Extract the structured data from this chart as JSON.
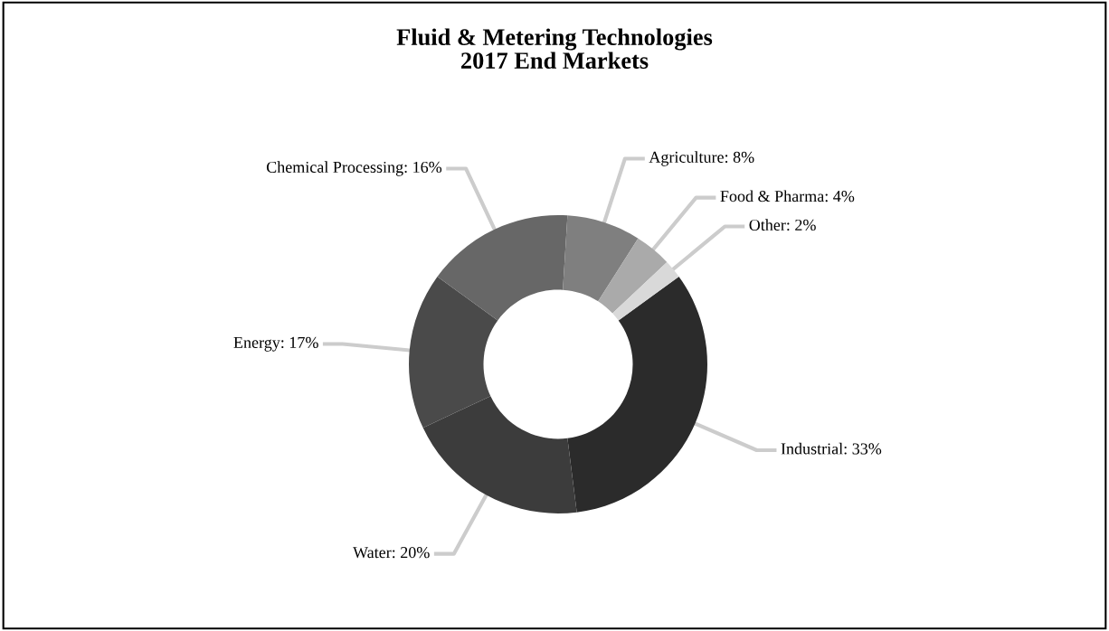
{
  "chart_data": {
    "type": "donut",
    "title": "Fluid & Metering Technologies\n2017 End Markets",
    "categories": [
      "Industrial",
      "Water",
      "Energy",
      "Chemical Processing",
      "Agriculture",
      "Food & Pharma",
      "Other"
    ],
    "values": [
      33,
      20,
      17,
      16,
      8,
      4,
      2
    ],
    "colors": [
      "#2b2b2b",
      "#3c3c3c",
      "#4a4a4a",
      "#676767",
      "#7f7f7f",
      "#aaaaaa",
      "#d9d9d9"
    ],
    "value_labels": [
      "33%",
      "20%",
      "17%",
      "16%",
      "8%",
      "4%",
      "2%"
    ],
    "legend": false
  }
}
